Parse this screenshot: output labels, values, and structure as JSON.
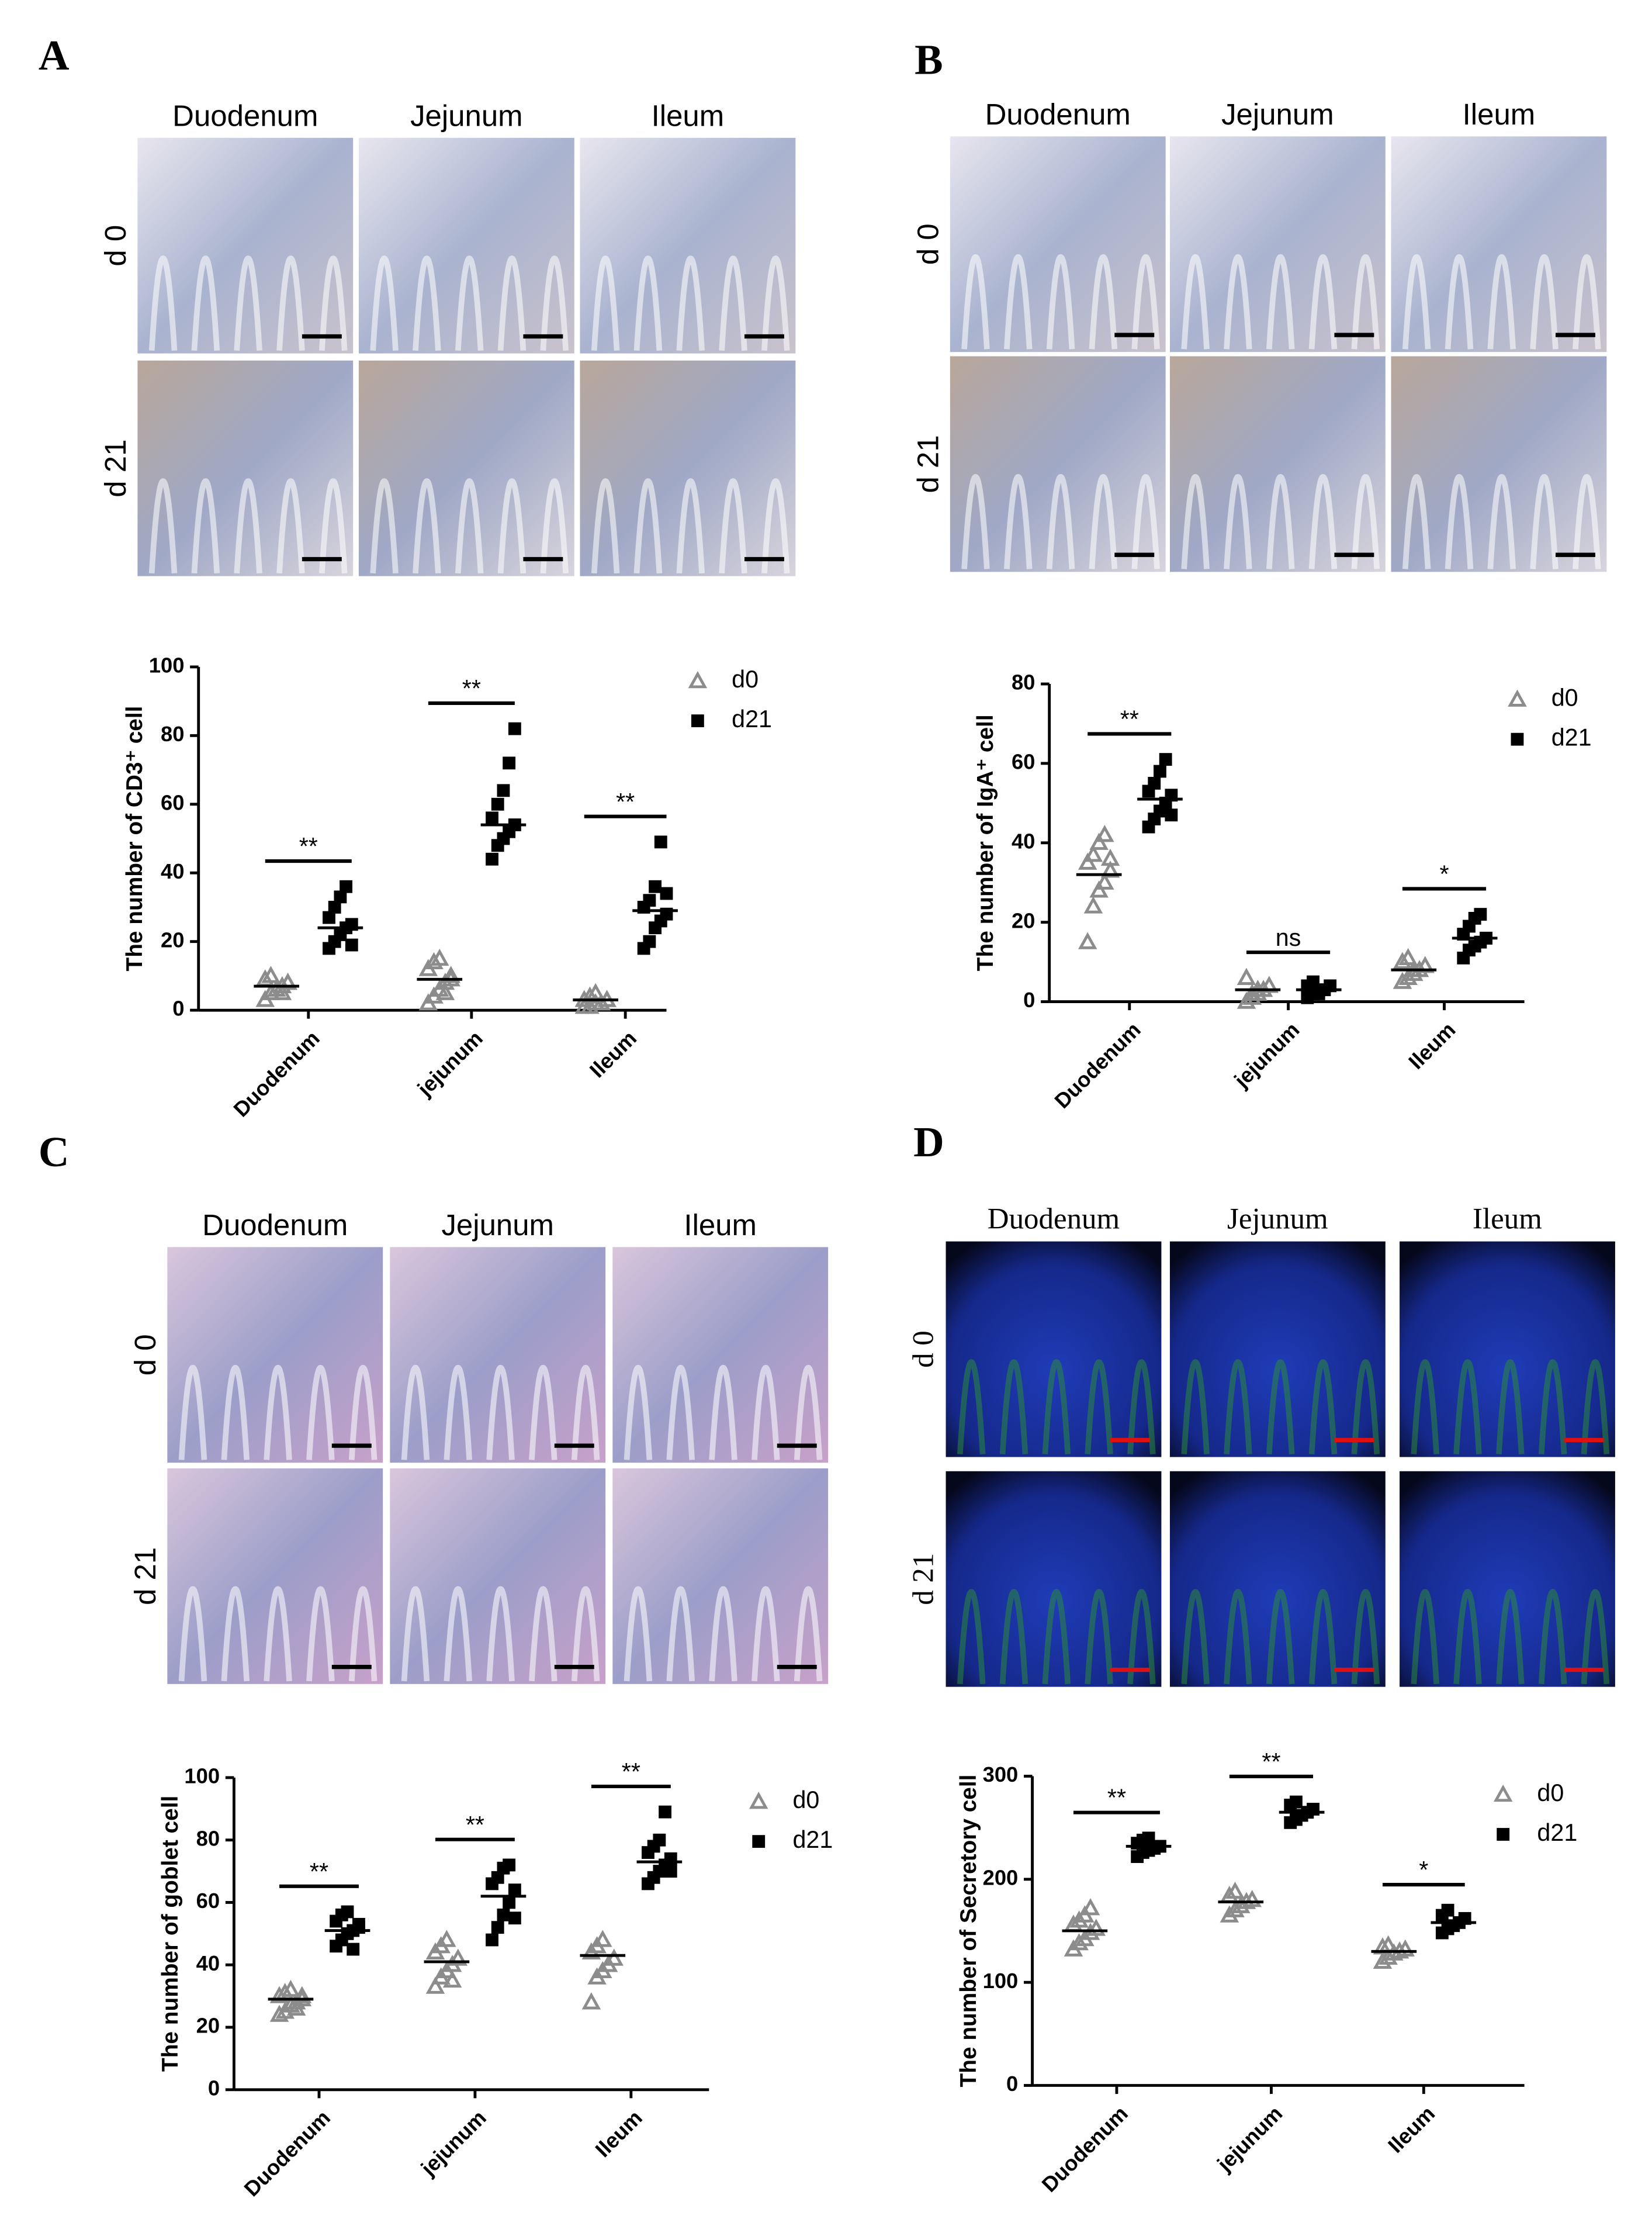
{
  "panels": [
    {
      "label": "A",
      "columns": [
        "Duodenum",
        "Jejunum",
        "Ileum"
      ],
      "rows": [
        "d 0",
        "d 21"
      ]
    },
    {
      "label": "B",
      "columns": [
        "Duodenum",
        "Jejunum",
        "Ileum"
      ],
      "rows": [
        "d 0",
        "d 21"
      ]
    },
    {
      "label": "C",
      "columns": [
        "Duodenum",
        "Jejunum",
        "Ileum"
      ],
      "rows": [
        "d 0",
        "d 21"
      ]
    },
    {
      "label": "D",
      "columns": [
        "Duodenum",
        "Jejunum",
        "Ileum"
      ],
      "rows": [
        "d 0",
        "d 21"
      ]
    }
  ],
  "chart_data": [
    {
      "type": "dot",
      "ylabel": "The number of CD3⁺ cell",
      "categories": [
        "Duodenum",
        "jejunum",
        "Ileum"
      ],
      "ylim": [
        0,
        100
      ],
      "yticks": [
        0,
        20,
        40,
        60,
        80,
        100
      ],
      "significance": [
        "**",
        "**",
        "**"
      ],
      "series": [
        {
          "name": "d0",
          "color": "#8c8c8c",
          "marker": "triangle",
          "values": [
            [
              3,
              5,
              6,
              7,
              8,
              9,
              10,
              6,
              5,
              8
            ],
            [
              2,
              4,
              6,
              8,
              10,
              12,
              14,
              15,
              5,
              9
            ],
            [
              1,
              1,
              2,
              2,
              3,
              3,
              4,
              5,
              2,
              3
            ]
          ],
          "means": [
            7,
            9,
            3
          ]
        },
        {
          "name": "d21",
          "color": "#000000",
          "marker": "square",
          "values": [
            [
              18,
              20,
              22,
              24,
              25,
              27,
              30,
              33,
              36,
              19
            ],
            [
              44,
              48,
              50,
              52,
              54,
              56,
              60,
              64,
              72,
              82
            ],
            [
              18,
              20,
              24,
              26,
              28,
              30,
              32,
              36,
              49,
              34
            ]
          ],
          "means": [
            24,
            54,
            29
          ]
        }
      ]
    },
    {
      "type": "dot",
      "ylabel": "The number of IgA⁺ cell",
      "categories": [
        "Duodenum",
        "jejunum",
        "Ileum"
      ],
      "ylim": [
        0,
        80
      ],
      "yticks": [
        0,
        20,
        40,
        60,
        80
      ],
      "significance": [
        "**",
        "ns",
        "*"
      ],
      "series": [
        {
          "name": "d0",
          "color": "#8c8c8c",
          "marker": "triangle",
          "values": [
            [
              15,
              24,
              28,
              30,
              33,
              35,
              37,
              40,
              42,
              36
            ],
            [
              0,
              1,
              2,
              3,
              4,
              6,
              2,
              3
            ],
            [
              5,
              6,
              7,
              8,
              9,
              10,
              11,
              8
            ]
          ],
          "means": [
            32,
            3,
            8
          ]
        },
        {
          "name": "d21",
          "color": "#000000",
          "marker": "square",
          "values": [
            [
              44,
              46,
              48,
              50,
              52,
              53,
              55,
              58,
              61,
              47
            ],
            [
              1,
              2,
              3,
              3,
              4,
              4,
              5,
              2
            ],
            [
              11,
              13,
              14,
              15,
              16,
              17,
              19,
              21,
              22,
              16
            ]
          ],
          "means": [
            51,
            3,
            16
          ]
        }
      ]
    },
    {
      "type": "dot",
      "ylabel": "The number of goblet  cell",
      "categories": [
        "Duodenum",
        "jejunum",
        "Ileum"
      ],
      "ylim": [
        0,
        100
      ],
      "yticks": [
        0,
        20,
        40,
        60,
        80,
        100
      ],
      "significance": [
        "**",
        "**",
        "**"
      ],
      "series": [
        {
          "name": "d0",
          "color": "#8c8c8c",
          "marker": "triangle",
          "values": [
            [
              24,
              25,
              27,
              28,
              29,
              30,
              31,
              32,
              26,
              30
            ],
            [
              33,
              36,
              38,
              40,
              42,
              44,
              46,
              48,
              35
            ],
            [
              28,
              36,
              38,
              40,
              42,
              44,
              46,
              48,
              40
            ]
          ],
          "means": [
            29,
            41,
            43
          ]
        },
        {
          "name": "d21",
          "color": "#000000",
          "marker": "square",
          "values": [
            [
              46,
              48,
              50,
              51,
              52,
              54,
              56,
              57,
              45,
              53
            ],
            [
              48,
              52,
              56,
              60,
              64,
              66,
              68,
              71,
              72,
              55
            ],
            [
              66,
              68,
              70,
              72,
              74,
              76,
              78,
              80,
              89,
              70
            ]
          ],
          "means": [
            51,
            62,
            73
          ]
        }
      ]
    },
    {
      "type": "dot",
      "ylabel": "The number of Secretory cell",
      "categories": [
        "Duodenum",
        "jejunum",
        "Ileum"
      ],
      "ylim": [
        0,
        300
      ],
      "yticks": [
        0,
        100,
        200,
        300
      ],
      "significance": [
        "**",
        "**",
        "*"
      ],
      "series": [
        {
          "name": "d0",
          "color": "#8c8c8c",
          "marker": "triangle",
          "values": [
            [
              132,
              138,
              142,
              148,
              152,
              156,
              160,
              165,
              172
            ],
            [
              165,
              170,
              174,
              178,
              180,
              184,
              188
            ],
            [
              120,
              124,
              128,
              130,
              132,
              134,
              136
            ]
          ],
          "means": [
            150,
            178,
            130
          ]
        },
        {
          "name": "d21",
          "color": "#000000",
          "marker": "square",
          "values": [
            [
              222,
              226,
              228,
              230,
              232,
              235,
              238,
              240
            ],
            [
              255,
              258,
              262,
              265,
              268,
              272,
              275
            ],
            [
              148,
              152,
              155,
              158,
              162,
              165,
              170
            ]
          ],
          "means": [
            232,
            265,
            158
          ]
        }
      ]
    }
  ]
}
